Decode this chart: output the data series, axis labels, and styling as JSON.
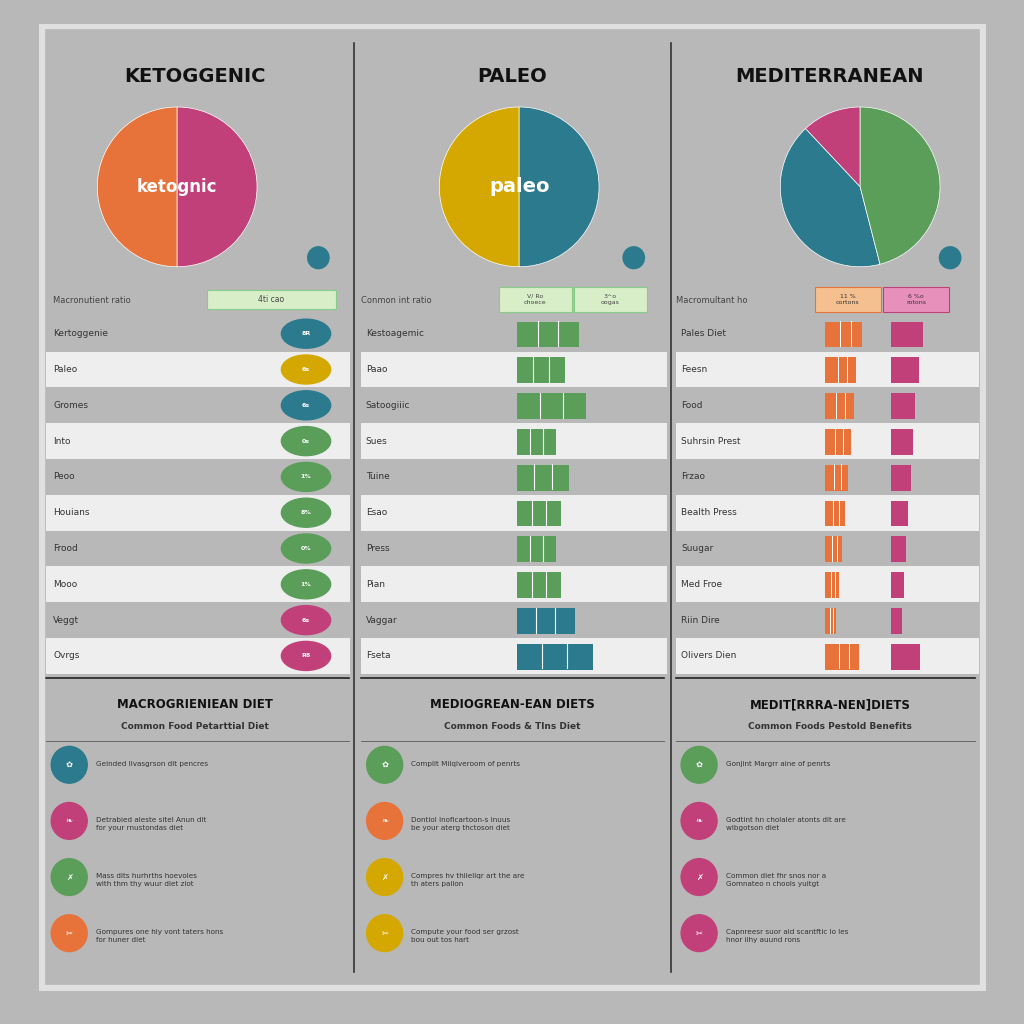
{
  "title_keto": "KETOGGENIC",
  "title_paleo": "PALEO",
  "title_med": "MEDITERRANEAN",
  "bg_color": "#f0f0f0",
  "frame_color": "#ffffff",
  "keto_pie": [
    0.5,
    0.5
  ],
  "keto_pie_colors": [
    "#E8733A",
    "#C2407A"
  ],
  "keto_label": "ketognic",
  "paleo_pie": [
    0.5,
    0.5
  ],
  "paleo_pie_colors": [
    "#D4A800",
    "#2B7A8E"
  ],
  "paleo_label": "paleo",
  "med_pie": [
    0.12,
    0.42,
    0.46
  ],
  "med_pie_colors": [
    "#C2407A",
    "#2B7A8E",
    "#5A9E5A"
  ],
  "med_label": "",
  "keto_items": [
    "Kertoggenie",
    "Paleo",
    "Gromes",
    "Into",
    "Peoo",
    "Houians",
    "Frood",
    "Mooo",
    "Veggt",
    "Ovrgs"
  ],
  "keto_item_colors": [
    "#2B7A8E",
    "#D4A800",
    "#2B7A8E",
    "#5A9E5A",
    "#5A9E5A",
    "#5A9E5A",
    "#5A9E5A",
    "#5A9E5A",
    "#C2407A",
    "#C2407A"
  ],
  "keto_values": [
    "8R",
    "6s",
    "6s",
    "0s",
    "1%",
    "8%",
    "0%",
    "1%",
    "6s",
    "R8"
  ],
  "paleo_items": [
    "Kestoagemic",
    "Paao",
    "Satoogiiic",
    "Sues",
    "Tuine",
    "Esao",
    "Press",
    "Pian",
    "Vaggar",
    "Fseta"
  ],
  "paleo_bar_colors": [
    "#5A9E5A",
    "#5A9E5A",
    "#5A9E5A",
    "#5A9E5A",
    "#5A9E5A",
    "#5A9E5A",
    "#5A9E5A",
    "#5A9E5A",
    "#2B7A8E",
    "#2B7A8E"
  ],
  "paleo_bar_vals": [
    0.45,
    0.35,
    0.5,
    0.28,
    0.38,
    0.32,
    0.28,
    0.32,
    0.42,
    0.55
  ],
  "med_items": [
    "Pales Diet",
    "Feesn",
    "Food",
    "Suhrsin Prest",
    "Frzao",
    "Bealth Press",
    "Suugar",
    "Med Froe",
    "Riin Dire",
    "Olivers Dien"
  ],
  "med_bar_color": "#E8733A",
  "med_bar2_color": "#C2407A",
  "med_bar_vals1": [
    0.65,
    0.55,
    0.5,
    0.45,
    0.4,
    0.35,
    0.3,
    0.25,
    0.2,
    0.6
  ],
  "med_bar_vals2": [
    0.55,
    0.48,
    0.42,
    0.38,
    0.34,
    0.3,
    0.26,
    0.22,
    0.18,
    0.5
  ],
  "section2_title_keto": "MACROGRIENIEAN DIET",
  "section2_subtitle_keto": "Common Food Petarttial Diet",
  "section2_title_paleo": "MEDIOGREAN-EAN DIETS",
  "section2_subtitle_paleo": "Common Foods & Tlns Diet",
  "section2_title_med": "MEDIT[RRRA-NEN]DIETS",
  "section2_subtitle_med": "Common Foods Pestold Benefits",
  "bullet_icons_keto": [
    "#2B7A8E",
    "#C2407A",
    "#5A9E5A",
    "#E8733A"
  ],
  "bullet_icons_paleo": [
    "#5A9E5A",
    "#E8733A",
    "#D4A800",
    "#D4A800"
  ],
  "bullet_icons_med": [
    "#5A9E5A",
    "#C2407A",
    "#C2407A",
    "#C2407A"
  ],
  "bullet_texts_keto": [
    "Geinded Iivasgrson dit pencres",
    "Detrabied aleste sitel Anun dit\nfor your rnustondas diet",
    "Mass dits hurhrths hoevoles\nwith thm thy wuur diet zlot",
    "Gompures one hiy vont taters hons\nfor huner diet"
  ],
  "bullet_texts_paleo": [
    "Complit Milqiveroom of penrts",
    "Dontiol Inoficartoon-s Inuus\nbe your aterg thctoson diet",
    "Compres hv thileliqr art the are\nth aters pailon",
    "Compute your food ser grzost\nbou out tos hart"
  ],
  "bullet_texts_med": [
    "Gonjint Margrr aine of penrts",
    "Godtint hn cholaler atonts dit are\nwibgotson diet",
    "Common diet fhr snos nor a\nGomnateo n chools yuitgt",
    "Capnreesr suor ald scantftic lo les\nhnor iihy auund rons"
  ],
  "macro_label_keto": "Macronutient ratio",
  "macro_val_keto": "4ti cao",
  "macro_label_paleo": "Conmon int ratio",
  "macro_col1_paleo": "V/ Ro\nchoece",
  "macro_col2_paleo": "3^o\noogas",
  "macro_label_med": "Macromultant ho",
  "macro_col1_med": "11 %\ncortons",
  "macro_col2_med": "6 %o\nrotons"
}
